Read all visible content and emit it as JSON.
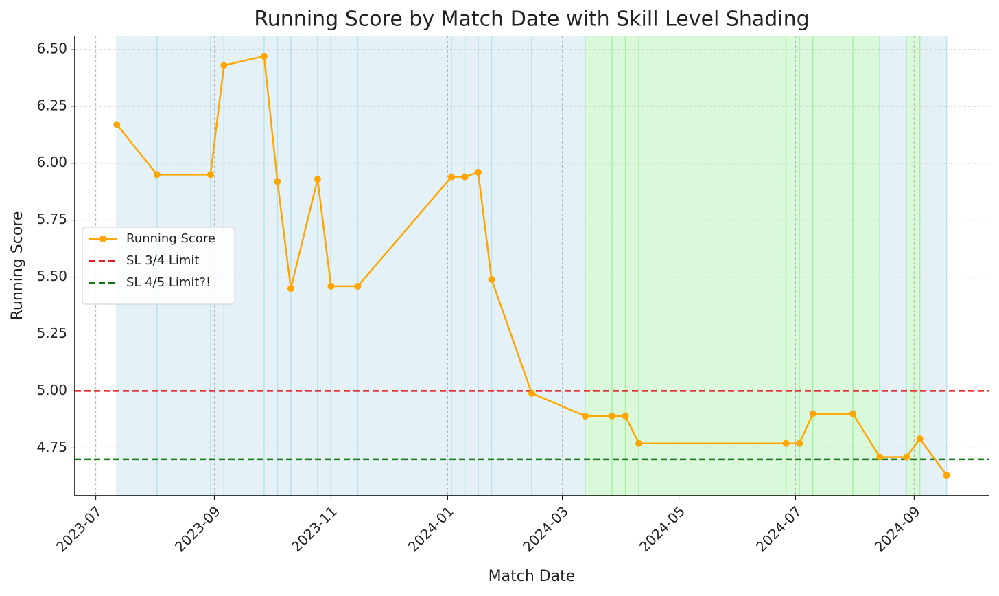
{
  "chart_data": {
    "type": "line",
    "title": "Running Score by Match Date with Skill Level Shading",
    "x_label": "Match Date",
    "y_label": "Running Score",
    "x": [
      "2023-07-12",
      "2023-08-02",
      "2023-08-30",
      "2023-09-06",
      "2023-09-27",
      "2023-10-04",
      "2023-10-11",
      "2023-10-25",
      "2023-11-01",
      "2023-11-15",
      "2024-01-03",
      "2024-01-10",
      "2024-01-17",
      "2024-01-24",
      "2024-02-14",
      "2024-03-13",
      "2024-03-27",
      "2024-04-03",
      "2024-04-10",
      "2024-06-26",
      "2024-07-03",
      "2024-07-10",
      "2024-07-31",
      "2024-08-14",
      "2024-08-28",
      "2024-09-04",
      "2024-09-18"
    ],
    "series": [
      {
        "name": "Running Score",
        "color": "#ffa500",
        "values": [
          6.17,
          5.95,
          5.95,
          6.43,
          6.47,
          5.92,
          5.45,
          5.93,
          5.46,
          5.46,
          5.94,
          5.94,
          5.96,
          5.49,
          4.99,
          4.89,
          4.89,
          4.89,
          4.77,
          4.77,
          4.77,
          4.9,
          4.9,
          4.71,
          4.71,
          4.79,
          4.63
        ]
      }
    ],
    "reference_lines": [
      {
        "name": "SL 3/4 Limit",
        "value": 5,
        "color": "#e41a1c"
      },
      {
        "name": "SL 4/5 Limit?!",
        "value": 4.7,
        "color": "#137a13"
      }
    ],
    "shading": [
      {
        "start": "2023-07-12",
        "end": "2024-03-13",
        "color": "#add8e6"
      },
      {
        "start": "2024-03-13",
        "end": "2024-08-14",
        "color": "#90ee90"
      },
      {
        "start": "2024-08-14",
        "end": "2024-08-28",
        "color": "#add8e6"
      },
      {
        "start": "2024-08-28",
        "end": "2024-09-04",
        "color": "#90ee90"
      },
      {
        "start": "2024-09-04",
        "end": "2024-09-18",
        "color": "#add8e6"
      }
    ],
    "xlim": [
      "2023-06-20",
      "2024-10-10"
    ],
    "xticks": [
      "2023-07",
      "2023-09",
      "2023-11",
      "2024-01",
      "2024-03",
      "2024-05",
      "2024-07",
      "2024-09"
    ],
    "ylim": [
      4.54,
      6.56
    ],
    "yticks": [
      4.75,
      {
        "value": 5,
        "label": "5.00"
      },
      5.25,
      {
        "value": 5.5,
        "label": "5.50"
      },
      5.75,
      {
        "value": 6,
        "label": "6.00"
      },
      6.25,
      {
        "value": 6.5,
        "label": "6.50"
      }
    ],
    "grid": true,
    "legend": "center left"
  }
}
